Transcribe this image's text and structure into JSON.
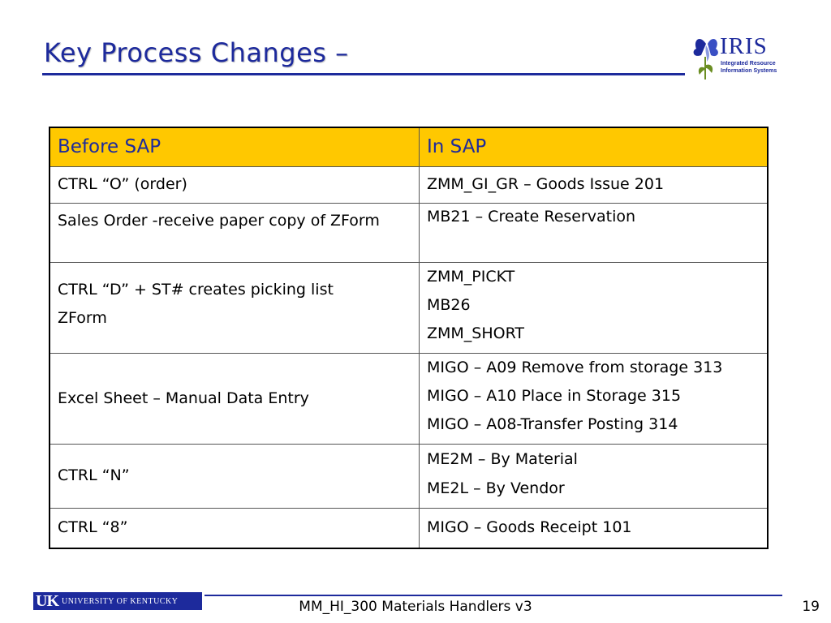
{
  "slide": {
    "title": "Key Process Changes –",
    "page_number": "19",
    "footer": "MM_HI_300 Materials Handlers v3"
  },
  "logo": {
    "wordmark": "IRIS",
    "subtitle": "Integrated Resource Information Systems"
  },
  "university_logo": {
    "abbrev": "UK",
    "name": "UNIVERSITY OF KENTUCKY"
  },
  "table": {
    "headers": [
      "Before SAP",
      "In SAP"
    ],
    "rows": [
      {
        "before": [
          "CTRL “O”  (order)"
        ],
        "in_sap": [
          "ZMM_GI_GR  – Goods Issue 201"
        ]
      },
      {
        "before": [
          "Sales Order -receive paper copy of ZForm"
        ],
        "in_sap": [
          "MB21 – Create Reservation"
        ]
      },
      {
        "before": [
          "CTRL “D” + ST# creates picking list",
          "ZForm"
        ],
        "in_sap": [
          "ZMM_PICKT",
          "MB26",
          "ZMM_SHORT"
        ]
      },
      {
        "before": [
          "Excel Sheet – Manual Data Entry"
        ],
        "in_sap": [
          "MIGO – A09 Remove from storage 313",
          "MIGO – A10 Place in Storage 315",
          "MIGO – A08-Transfer Posting 314"
        ]
      },
      {
        "before": [
          "CTRL “N”"
        ],
        "in_sap": [
          "ME2M – By Material",
          "ME2L – By Vendor"
        ]
      },
      {
        "before": [
          "CTRL “8”"
        ],
        "in_sap": [
          "MIGO – Goods Receipt 101"
        ]
      }
    ]
  },
  "colors": {
    "title_blue": "#1d2a9c",
    "header_yellow": "#ffc800"
  }
}
